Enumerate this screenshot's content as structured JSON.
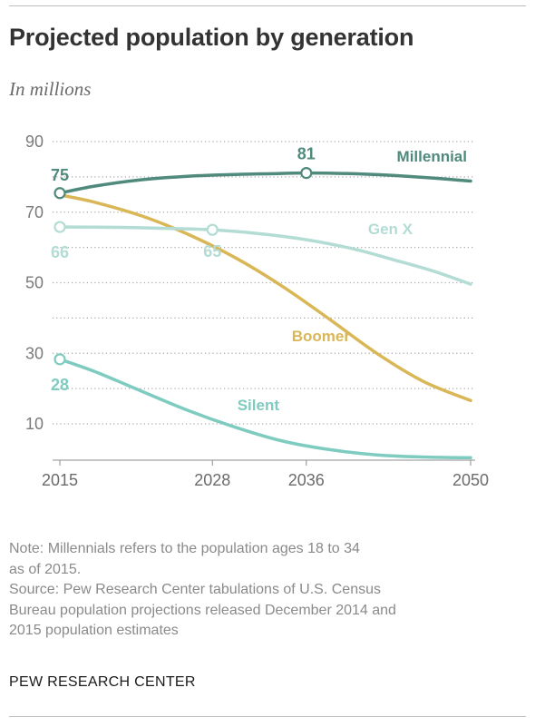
{
  "header": {
    "title": "Projected population by generation",
    "subtitle": "In millions"
  },
  "footer": {
    "note_lines": [
      "Note: Millennials refers to the population ages 18 to 34",
      "as of 2015.",
      "Source: Pew Research Center tabulations of U.S. Census",
      "Bureau population projections released December 2014 and",
      "2015 population estimates"
    ],
    "brand": "PEW RESEARCH CENTER"
  },
  "chart_data": {
    "type": "line",
    "title": "Projected population by generation",
    "subtitle": "In millions",
    "xlim": [
      2015,
      2050
    ],
    "ylim": [
      0,
      90
    ],
    "x_ticks": [
      2015,
      2028,
      2036,
      2050
    ],
    "y_ticks": [
      10,
      30,
      50,
      70,
      90
    ],
    "grid": true,
    "series": [
      {
        "name": "Millennial",
        "color": "#4f8a7c",
        "x": [
          2015,
          2018,
          2022,
          2026,
          2030,
          2033,
          2036,
          2040,
          2044,
          2047,
          2050
        ],
        "values": [
          75.4,
          77.4,
          79.2,
          80.2,
          80.7,
          80.9,
          81.1,
          80.9,
          80.3,
          79.6,
          78.8
        ],
        "labels": [
          {
            "x": 2015,
            "text": "75"
          },
          {
            "x": 2036,
            "text": "81"
          }
        ]
      },
      {
        "name": "Gen X",
        "color": "#b2dcd4",
        "x": [
          2015,
          2020,
          2024,
          2028,
          2032,
          2036,
          2040,
          2044,
          2047,
          2050
        ],
        "values": [
          65.8,
          65.7,
          65.4,
          65.0,
          63.9,
          62.2,
          59.6,
          56.0,
          53.1,
          49.6
        ],
        "labels": [
          {
            "x": 2015,
            "text": "66"
          },
          {
            "x": 2028,
            "text": "65"
          }
        ]
      },
      {
        "name": "Boomer",
        "color": "#d9b656",
        "x": [
          2015,
          2018,
          2022,
          2026,
          2030,
          2034,
          2038,
          2042,
          2046,
          2050
        ],
        "values": [
          74.9,
          72.8,
          68.9,
          63.6,
          57.0,
          48.9,
          39.6,
          30.0,
          22.0,
          16.6
        ]
      },
      {
        "name": "Silent",
        "color": "#7ecbc0",
        "x": [
          2015,
          2018,
          2022,
          2026,
          2030,
          2034,
          2038,
          2042,
          2046,
          2050
        ],
        "values": [
          28.3,
          24.8,
          19.2,
          13.7,
          9.0,
          5.1,
          2.7,
          1.2,
          0.6,
          0.4
        ],
        "labels": [
          {
            "x": 2015,
            "text": "28"
          }
        ]
      }
    ]
  }
}
